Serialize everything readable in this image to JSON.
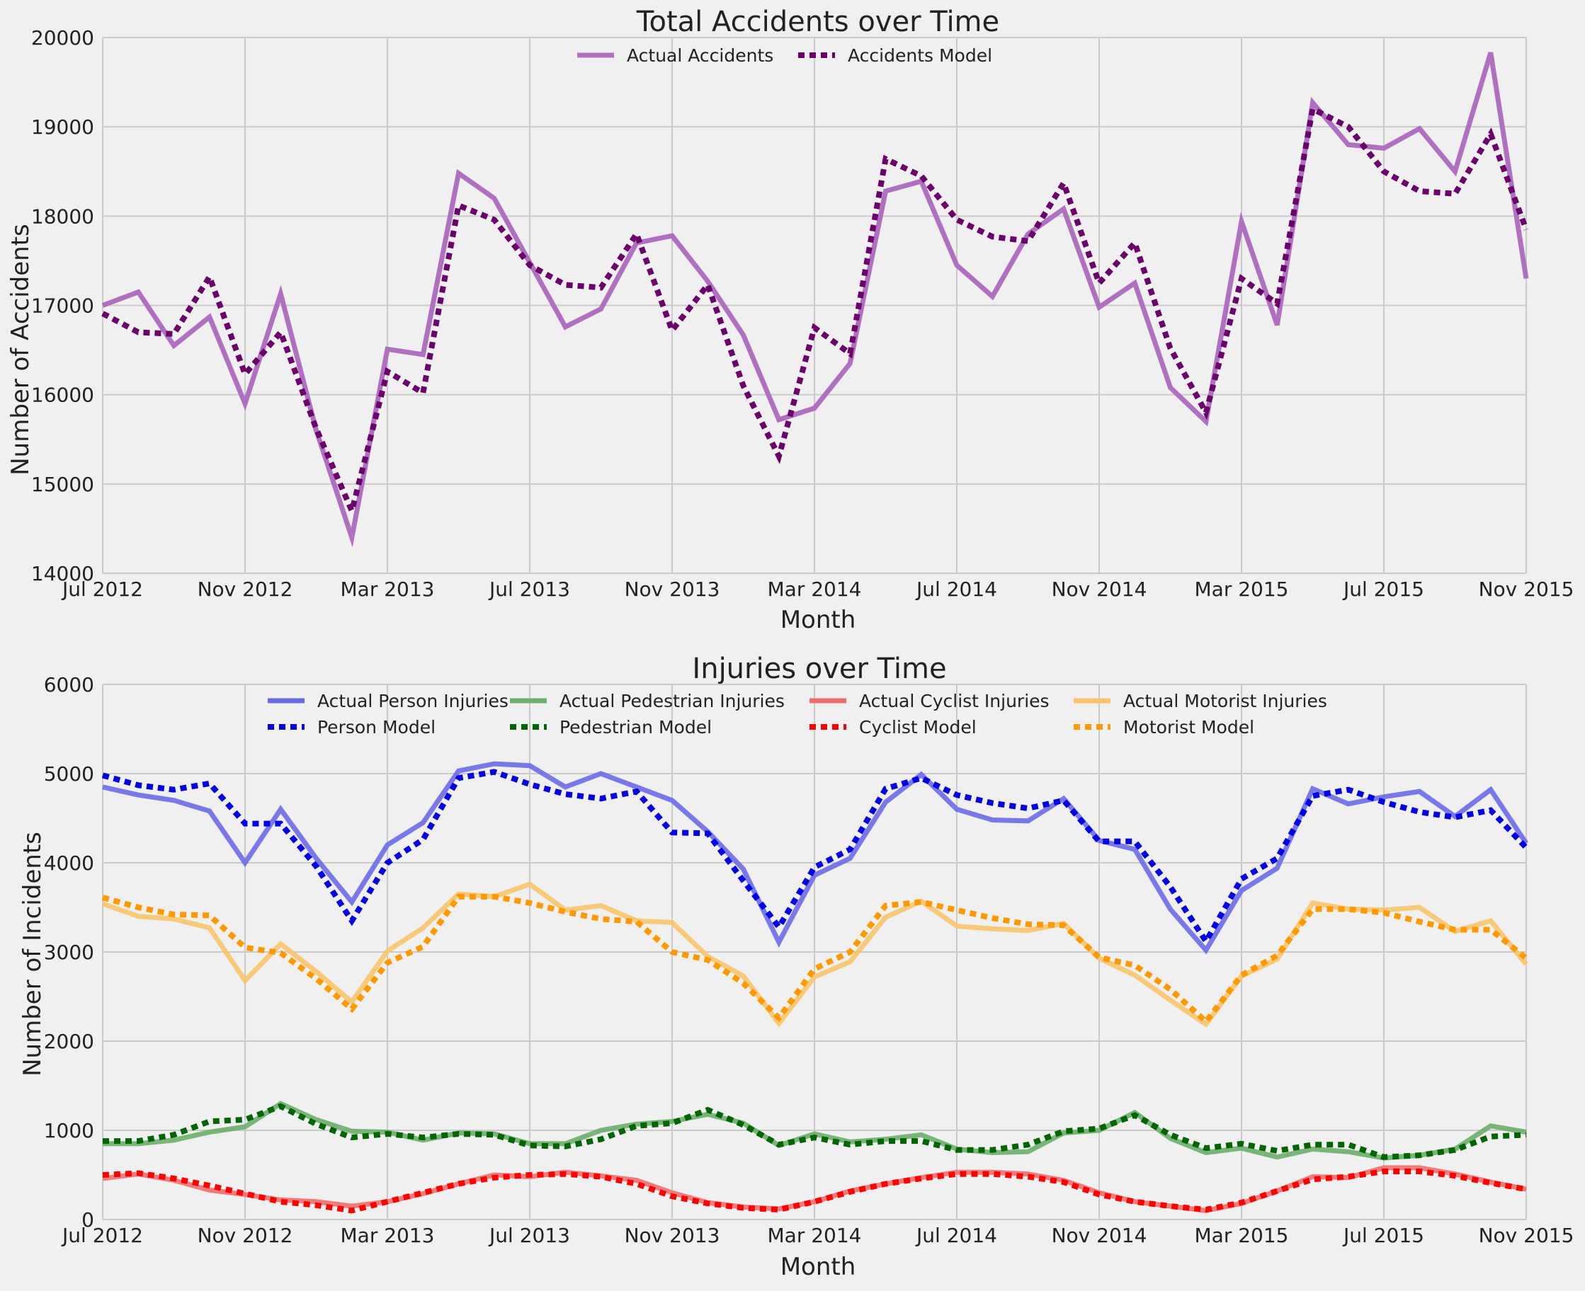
{
  "chart_data": [
    {
      "type": "line",
      "title": "Total Accidents over Time",
      "xlabel": "Month",
      "ylabel": "Number of Accidents",
      "xlim": [
        "Jul 2012",
        "Nov 2015"
      ],
      "ylim": [
        14000,
        20000
      ],
      "grid": true,
      "legend_position": "top-center",
      "x_tick_labels": [
        "Jul 2012",
        "Nov 2012",
        "Mar 2013",
        "Jul 2013",
        "Nov 2013",
        "Mar 2014",
        "Jul 2014",
        "Nov 2014",
        "Mar 2015",
        "Jul 2015",
        "Nov 2015"
      ],
      "y_ticks": [
        14000,
        15000,
        16000,
        17000,
        18000,
        19000,
        20000
      ],
      "y_tick_labels": [
        "14000",
        "15000",
        "16000",
        "17000",
        "18000",
        "19000",
        "20000"
      ],
      "x": [
        "2012-07",
        "2012-08",
        "2012-09",
        "2012-10",
        "2012-11",
        "2012-12",
        "2013-01",
        "2013-02",
        "2013-03",
        "2013-04",
        "2013-05",
        "2013-06",
        "2013-07",
        "2013-08",
        "2013-09",
        "2013-10",
        "2013-11",
        "2013-12",
        "2014-01",
        "2014-02",
        "2014-03",
        "2014-04",
        "2014-05",
        "2014-06",
        "2014-07",
        "2014-08",
        "2014-09",
        "2014-10",
        "2014-11",
        "2014-12",
        "2015-01",
        "2015-02",
        "2015-03",
        "2015-04",
        "2015-05",
        "2015-06",
        "2015-07",
        "2015-08",
        "2015-09",
        "2015-10",
        "2015-11"
      ],
      "series": [
        {
          "name": "Actual Accidents",
          "color": "#b070c0",
          "style": "solid",
          "values": [
            17000,
            17150,
            16550,
            16870,
            15900,
            17130,
            15600,
            14400,
            16510,
            16450,
            18480,
            18200,
            17480,
            16760,
            16960,
            17700,
            17780,
            17270,
            16670,
            15720,
            15850,
            16350,
            18280,
            18390,
            17450,
            17100,
            17800,
            18080,
            16980,
            17250,
            16080,
            15700,
            17940,
            16780,
            19270,
            18800,
            18760,
            18980,
            18500,
            19830,
            17300
          ]
        },
        {
          "name": "Accidents Model",
          "color": "#6a006a",
          "style": "dotted",
          "values": [
            16910,
            16700,
            16680,
            17320,
            16230,
            16700,
            15620,
            14700,
            16260,
            16020,
            18120,
            17960,
            17450,
            17230,
            17200,
            17800,
            16720,
            17230,
            16100,
            15310,
            16750,
            16460,
            18640,
            18450,
            17960,
            17770,
            17720,
            18370,
            17250,
            17700,
            16520,
            15800,
            17300,
            17020,
            19200,
            19000,
            18500,
            18280,
            18250,
            18920,
            17850
          ]
        }
      ]
    },
    {
      "type": "line",
      "title": "Injuries over Time",
      "xlabel": "Month",
      "ylabel": "Number of Incidents",
      "xlim": [
        "Jul 2012",
        "Nov 2015"
      ],
      "ylim": [
        0,
        6000
      ],
      "grid": true,
      "legend_position": "top-center",
      "x_tick_labels": [
        "Jul 2012",
        "Nov 2012",
        "Mar 2013",
        "Jul 2013",
        "Nov 2013",
        "Mar 2014",
        "Jul 2014",
        "Nov 2014",
        "Mar 2015",
        "Jul 2015",
        "Nov 2015"
      ],
      "y_ticks": [
        0,
        1000,
        2000,
        3000,
        4000,
        5000,
        6000
      ],
      "y_tick_labels": [
        "0",
        "1000",
        "2000",
        "3000",
        "4000",
        "5000",
        "6000"
      ],
      "x": [
        "2012-07",
        "2012-08",
        "2012-09",
        "2012-10",
        "2012-11",
        "2012-12",
        "2013-01",
        "2013-02",
        "2013-03",
        "2013-04",
        "2013-05",
        "2013-06",
        "2013-07",
        "2013-08",
        "2013-09",
        "2013-10",
        "2013-11",
        "2013-12",
        "2014-01",
        "2014-02",
        "2014-03",
        "2014-04",
        "2014-05",
        "2014-06",
        "2014-07",
        "2014-08",
        "2014-09",
        "2014-10",
        "2014-11",
        "2014-12",
        "2015-01",
        "2015-02",
        "2015-03",
        "2015-04",
        "2015-05",
        "2015-06",
        "2015-07",
        "2015-08",
        "2015-09",
        "2015-10",
        "2015-11"
      ],
      "series": [
        {
          "name": "Actual Person Injuries",
          "color": "#6a6ae8",
          "style": "solid",
          "values": [
            4850,
            4760,
            4700,
            4580,
            4000,
            4600,
            4050,
            3560,
            4200,
            4450,
            5030,
            5110,
            5090,
            4850,
            5000,
            4850,
            4700,
            4350,
            3930,
            3110,
            3860,
            4050,
            4680,
            4990,
            4600,
            4480,
            4470,
            4720,
            4250,
            4150,
            3480,
            3020,
            3690,
            3940,
            4830,
            4660,
            4740,
            4800,
            4520,
            4820,
            4220
          ]
        },
        {
          "name": "Person Model",
          "color": "#0000e6",
          "style": "dotted",
          "values": [
            4980,
            4870,
            4820,
            4890,
            4440,
            4440,
            3960,
            3350,
            4000,
            4260,
            4950,
            5020,
            4880,
            4770,
            4720,
            4800,
            4340,
            4330,
            3800,
            3280,
            3950,
            4150,
            4830,
            4950,
            4760,
            4670,
            4610,
            4700,
            4240,
            4240,
            3730,
            3120,
            3820,
            4050,
            4750,
            4820,
            4680,
            4570,
            4510,
            4590,
            4170
          ]
        },
        {
          "name": "Actual Pedestrian Injuries",
          "color": "#6cae6c",
          "style": "solid",
          "values": [
            850,
            850,
            890,
            980,
            1040,
            1300,
            1120,
            990,
            980,
            890,
            970,
            960,
            850,
            850,
            1000,
            1070,
            1100,
            1180,
            1080,
            830,
            960,
            870,
            900,
            950,
            790,
            750,
            760,
            970,
            1000,
            1200,
            910,
            750,
            800,
            700,
            790,
            760,
            690,
            720,
            790,
            1050,
            980
          ]
        },
        {
          "name": "Pedestrian Model",
          "color": "#006400",
          "style": "dotted",
          "values": [
            880,
            880,
            950,
            1100,
            1120,
            1270,
            1070,
            920,
            960,
            920,
            960,
            950,
            830,
            820,
            900,
            1050,
            1080,
            1230,
            1060,
            840,
            920,
            840,
            880,
            880,
            780,
            780,
            840,
            990,
            1020,
            1170,
            950,
            800,
            850,
            770,
            840,
            840,
            700,
            720,
            780,
            930,
            950
          ]
        },
        {
          "name": "Actual Cyclist Injuries",
          "color": "#ee6e6e",
          "style": "solid",
          "values": [
            460,
            510,
            440,
            330,
            280,
            220,
            200,
            150,
            200,
            290,
            400,
            500,
            480,
            530,
            490,
            440,
            300,
            190,
            140,
            120,
            200,
            320,
            400,
            470,
            530,
            530,
            510,
            440,
            300,
            200,
            150,
            100,
            180,
            320,
            480,
            470,
            580,
            580,
            510,
            420,
            340
          ]
        },
        {
          "name": "Cyclist Model",
          "color": "#ff0000",
          "style": "dotted",
          "values": [
            500,
            520,
            460,
            380,
            290,
            200,
            160,
            100,
            200,
            300,
            400,
            470,
            500,
            510,
            480,
            400,
            260,
            180,
            130,
            110,
            200,
            310,
            400,
            460,
            510,
            510,
            480,
            420,
            280,
            200,
            150,
            110,
            190,
            320,
            450,
            480,
            540,
            540,
            490,
            410,
            340
          ]
        },
        {
          "name": "Actual Motorist Injuries",
          "color": "#f7c46a",
          "style": "solid",
          "values": [
            3540,
            3400,
            3370,
            3270,
            2680,
            3090,
            2780,
            2440,
            3010,
            3270,
            3650,
            3620,
            3760,
            3470,
            3520,
            3350,
            3330,
            2950,
            2730,
            2200,
            2720,
            2890,
            3390,
            3570,
            3290,
            3260,
            3240,
            3320,
            2930,
            2740,
            2460,
            2190,
            2730,
            2920,
            3550,
            3480,
            3470,
            3500,
            3230,
            3350,
            2860
          ]
        },
        {
          "name": "Motorist Model",
          "color": "#ff9900",
          "style": "dotted",
          "values": [
            3610,
            3500,
            3420,
            3410,
            3050,
            2990,
            2700,
            2360,
            2880,
            3060,
            3620,
            3620,
            3550,
            3450,
            3370,
            3340,
            3000,
            2910,
            2650,
            2260,
            2810,
            3000,
            3520,
            3560,
            3470,
            3380,
            3310,
            3300,
            2940,
            2850,
            2580,
            2220,
            2740,
            2960,
            3480,
            3480,
            3440,
            3340,
            3250,
            3250,
            2930
          ]
        }
      ]
    }
  ]
}
